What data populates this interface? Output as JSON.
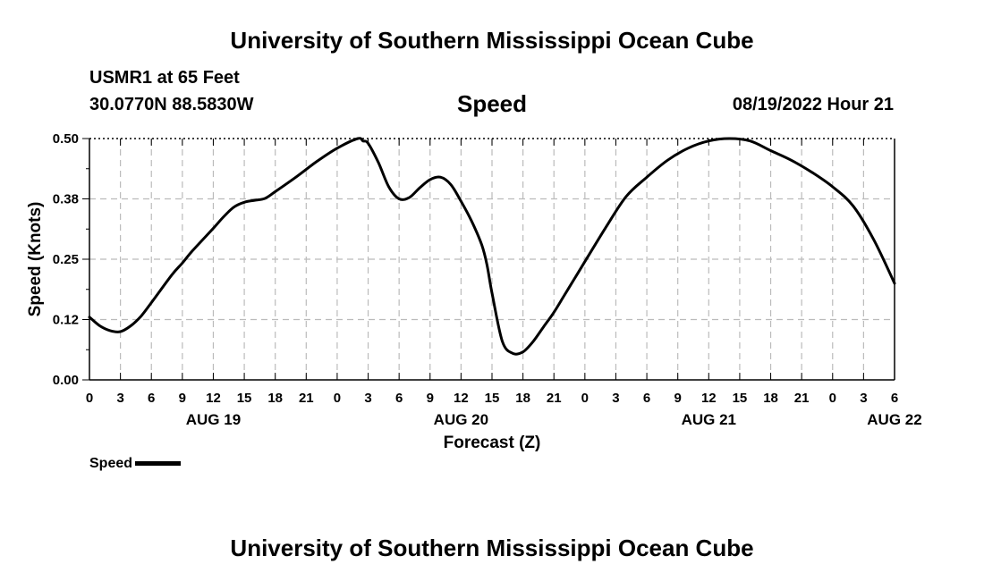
{
  "header": {
    "title": "University of Southern Mississippi Ocean Cube",
    "station": "USMR1 at 65 Feet",
    "coords": "30.0770N  88.5830W",
    "timestamp": "08/19/2022 Hour 21"
  },
  "footer": {
    "title": "University of Southern Mississippi Ocean Cube"
  },
  "legend": {
    "label": "Speed"
  },
  "chart_data": {
    "type": "line",
    "title": "Speed",
    "xlabel": "Forecast (Z)",
    "ylabel": "Speed (Knots)",
    "ylim": [
      0,
      0.5
    ],
    "xlim": [
      0,
      78
    ],
    "x_unit": "hours from AUG 19 00Z",
    "y_ticks": [
      0.0,
      0.125,
      0.25,
      0.375,
      0.5
    ],
    "y_tick_labels": [
      "0.00",
      "0.12",
      "0.25",
      "0.38",
      "0.50"
    ],
    "x_tick_labels": [
      "0",
      "3",
      "6",
      "9",
      "12",
      "15",
      "18",
      "21",
      "0",
      "3",
      "6",
      "9",
      "12",
      "15",
      "18",
      "21",
      "0",
      "3",
      "6",
      "9",
      "12",
      "15",
      "18",
      "21",
      "0",
      "3",
      "6"
    ],
    "date_labels": [
      {
        "label": "AUG 19",
        "hour": 12
      },
      {
        "label": "AUG 20",
        "hour": 36
      },
      {
        "label": "AUG 21",
        "hour": 60
      },
      {
        "label": "AUG 22",
        "hour": 78
      }
    ],
    "grid": true,
    "series": [
      {
        "name": "Speed",
        "color": "#000000",
        "x": [
          0,
          1,
          2,
          3,
          4,
          5,
          6,
          8,
          9,
          10,
          12,
          13,
          14,
          15,
          16,
          17,
          18,
          20,
          22,
          24,
          26,
          26.5,
          27,
          28,
          29,
          30,
          31,
          32,
          33,
          34,
          35,
          36,
          37,
          38,
          38.5,
          39,
          40,
          41,
          42,
          43,
          44,
          45,
          46,
          47,
          48,
          50,
          52,
          54,
          56,
          58,
          60,
          62,
          64,
          66,
          68,
          70,
          72,
          74,
          76,
          78
        ],
        "y": [
          0.13,
          0.112,
          0.102,
          0.1,
          0.112,
          0.132,
          0.16,
          0.218,
          0.242,
          0.268,
          0.314,
          0.338,
          0.358,
          0.368,
          0.372,
          0.376,
          0.39,
          0.42,
          0.452,
          0.48,
          0.5,
          0.495,
          0.49,
          0.45,
          0.4,
          0.375,
          0.378,
          0.398,
          0.415,
          0.42,
          0.405,
          0.37,
          0.33,
          0.28,
          0.24,
          0.18,
          0.08,
          0.055,
          0.058,
          0.08,
          0.11,
          0.14,
          0.175,
          0.21,
          0.245,
          0.315,
          0.38,
          0.42,
          0.455,
          0.48,
          0.495,
          0.5,
          0.495,
          0.475,
          0.455,
          0.43,
          0.4,
          0.36,
          0.29,
          0.2
        ]
      }
    ]
  }
}
